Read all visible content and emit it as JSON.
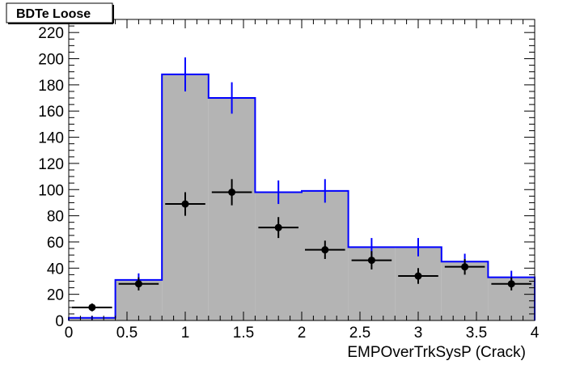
{
  "chart_data": {
    "type": "bar",
    "title": "BDTe Loose",
    "xlabel": "EMPOverTrkSysP (Crack)",
    "ylabel": "",
    "xlim": [
      0,
      4
    ],
    "ylim": [
      0,
      230
    ],
    "bin_edges": [
      0,
      0.4,
      0.8,
      1.2,
      1.6,
      2.0,
      2.4,
      2.8,
      3.2,
      3.6,
      4.0
    ],
    "x_ticks": [
      "0",
      "0.5",
      "1",
      "1.5",
      "2",
      "2.5",
      "3",
      "3.5",
      "4"
    ],
    "y_ticks": [
      "0",
      "20",
      "40",
      "60",
      "80",
      "100",
      "120",
      "140",
      "160",
      "180",
      "200",
      "220"
    ],
    "grid": false,
    "colors": {
      "histogram_fill": "#b4b4b4",
      "histogram_line": "#0000ff",
      "points": "#000000"
    },
    "series": [
      {
        "style": "filled-histogram",
        "values": [
          2,
          31,
          188,
          170,
          98,
          99,
          56,
          56,
          45,
          33
        ],
        "errors": [
          1.5,
          5,
          13,
          12,
          9,
          9,
          7,
          7,
          6,
          5
        ]
      },
      {
        "style": "points-with-errors",
        "x": [
          0.2,
          0.6,
          1.0,
          1.4,
          1.8,
          2.2,
          2.6,
          3.0,
          3.4,
          3.8
        ],
        "values": [
          10,
          28,
          89,
          98,
          71,
          54,
          46,
          34,
          41,
          28
        ],
        "errors": [
          3,
          5,
          9,
          10,
          8,
          7,
          7,
          6,
          6,
          5
        ]
      }
    ]
  }
}
